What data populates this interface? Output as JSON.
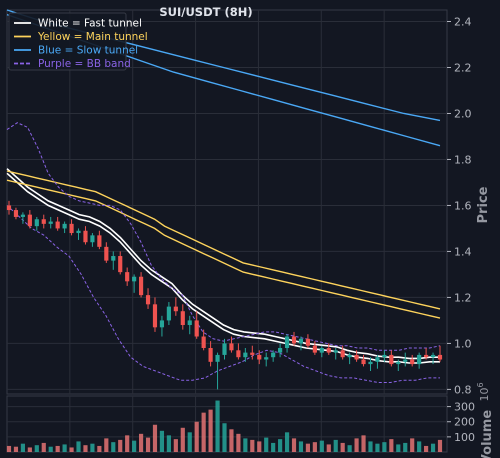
{
  "chart_data": {
    "type": "candlestick",
    "title": "SUI/USDT (8H)",
    "ylabel": "Price",
    "volume_label": "Volume",
    "volume_exponent_label": "1e6",
    "volume_exponent_text": "10",
    "volume_exponent_power": "6",
    "ylim": [
      0.78,
      2.45
    ],
    "yticks": [
      "2.4",
      "2.2",
      "2.0",
      "1.8",
      "1.6",
      "1.4",
      "1.2",
      "1.0",
      "0.8"
    ],
    "volume_ylim": [
      0,
      370
    ],
    "volume_ticks": [
      "300",
      "200",
      "100"
    ],
    "grid": true,
    "legend_position": "top-left",
    "colors": {
      "up": "#26a69a",
      "down": "#ef5350",
      "fast": "#ffffff",
      "main": "#fdd35c",
      "slow": "#4aa8f5",
      "bb": "#8a63e6",
      "background": "#131722",
      "grid": "#2a2e39"
    },
    "legend": [
      {
        "label": "White = Fast tunnel",
        "color": "#ffffff",
        "dash": false
      },
      {
        "label": "Yellow = Main tunnel",
        "color": "#fdd35c",
        "dash": false
      },
      {
        "label": "Blue = Slow tunnel",
        "color": "#4aa8f5",
        "dash": false
      },
      {
        "label": "Purple = BB band",
        "color": "#8a63e6",
        "dash": true
      }
    ],
    "series": [
      {
        "name": "Fast tunnel upper",
        "values": [
          1.76,
          1.72,
          1.68,
          1.65,
          1.62,
          1.6,
          1.58,
          1.56,
          1.55,
          1.53,
          1.5,
          1.46,
          1.41,
          1.36,
          1.32,
          1.29,
          1.26,
          1.21,
          1.17,
          1.14,
          1.11,
          1.08,
          1.06,
          1.05,
          1.045,
          1.04,
          1.03,
          1.02,
          1.01,
          1.0,
          0.995,
          0.99,
          0.985,
          0.97,
          0.96,
          0.955,
          0.945,
          0.94,
          0.94,
          0.935,
          0.935,
          0.94,
          0.94
        ]
      },
      {
        "name": "Fast tunnel lower",
        "values": [
          1.74,
          1.7,
          1.66,
          1.63,
          1.6,
          1.58,
          1.56,
          1.54,
          1.53,
          1.51,
          1.48,
          1.44,
          1.39,
          1.34,
          1.3,
          1.27,
          1.24,
          1.19,
          1.15,
          1.12,
          1.09,
          1.06,
          1.04,
          1.03,
          1.025,
          1.02,
          1.01,
          1.0,
          0.99,
          0.98,
          0.975,
          0.97,
          0.965,
          0.95,
          0.94,
          0.935,
          0.925,
          0.92,
          0.92,
          0.915,
          0.915,
          0.92,
          0.92
        ]
      },
      {
        "name": "Main tunnel upper",
        "values": [
          1.75,
          1.74,
          1.73,
          1.72,
          1.71,
          1.7,
          1.69,
          1.68,
          1.67,
          1.66,
          1.64,
          1.62,
          1.6,
          1.58,
          1.56,
          1.54,
          1.51,
          1.49,
          1.47,
          1.45,
          1.43,
          1.41,
          1.39,
          1.37,
          1.35,
          1.34,
          1.33,
          1.32,
          1.31,
          1.3,
          1.29,
          1.28,
          1.27,
          1.26,
          1.25,
          1.24,
          1.23,
          1.22,
          1.21,
          1.2,
          1.19,
          1.18,
          1.17,
          1.16,
          1.15
        ]
      },
      {
        "name": "Main tunnel lower",
        "values": [
          1.71,
          1.7,
          1.69,
          1.68,
          1.67,
          1.66,
          1.65,
          1.64,
          1.63,
          1.62,
          1.6,
          1.58,
          1.56,
          1.54,
          1.52,
          1.5,
          1.47,
          1.45,
          1.43,
          1.41,
          1.39,
          1.37,
          1.35,
          1.33,
          1.31,
          1.3,
          1.29,
          1.28,
          1.27,
          1.26,
          1.25,
          1.24,
          1.23,
          1.22,
          1.21,
          1.2,
          1.19,
          1.18,
          1.17,
          1.16,
          1.15,
          1.14,
          1.13,
          1.12,
          1.11
        ]
      },
      {
        "name": "Slow tunnel upper",
        "values": [
          2.45,
          2.4,
          2.36,
          2.32,
          2.28,
          2.24,
          2.2,
          2.16,
          2.12,
          2.08,
          2.04,
          2.0,
          1.97
        ]
      },
      {
        "name": "Slow tunnel lower",
        "values": [
          2.43,
          2.38,
          2.33,
          2.28,
          2.23,
          2.18,
          2.14,
          2.1,
          2.06,
          2.02,
          1.98,
          1.94,
          1.9,
          1.86
        ]
      },
      {
        "name": "BB upper",
        "values": [
          1.93,
          1.96,
          1.94,
          1.85,
          1.74,
          1.68,
          1.64,
          1.62,
          1.61,
          1.6,
          1.6,
          1.58,
          1.52,
          1.44,
          1.34,
          1.28,
          1.24,
          1.21,
          1.12,
          1.05,
          1.02,
          1.01,
          1.02,
          1.03,
          1.04,
          1.05,
          1.05,
          1.04,
          1.03,
          1.02,
          1.01,
          1.0,
          0.99,
          0.99,
          0.98,
          0.98,
          0.97,
          0.97,
          0.97,
          0.98,
          0.98,
          0.98,
          0.99
        ]
      },
      {
        "name": "BB lower",
        "values": [
          1.6,
          1.55,
          1.5,
          1.47,
          1.42,
          1.38,
          1.3,
          1.2,
          1.12,
          1.02,
          0.94,
          0.9,
          0.88,
          0.86,
          0.84,
          0.84,
          0.85,
          0.88,
          0.9,
          0.92,
          0.95,
          0.97,
          0.96,
          0.93,
          0.9,
          0.88,
          0.86,
          0.85,
          0.85,
          0.84,
          0.83,
          0.83,
          0.84,
          0.84,
          0.85,
          0.85
        ]
      }
    ],
    "candles": [
      [
        1.6,
        1.62,
        1.56,
        1.58
      ],
      [
        1.58,
        1.59,
        1.54,
        1.55
      ],
      [
        1.55,
        1.57,
        1.52,
        1.56
      ],
      [
        1.56,
        1.58,
        1.5,
        1.51
      ],
      [
        1.51,
        1.55,
        1.49,
        1.54
      ],
      [
        1.54,
        1.56,
        1.5,
        1.52
      ],
      [
        1.52,
        1.55,
        1.5,
        1.53
      ],
      [
        1.53,
        1.55,
        1.49,
        1.5
      ],
      [
        1.5,
        1.53,
        1.48,
        1.52
      ],
      [
        1.52,
        1.54,
        1.47,
        1.48
      ],
      [
        1.48,
        1.5,
        1.45,
        1.49
      ],
      [
        1.49,
        1.51,
        1.43,
        1.44
      ],
      [
        1.44,
        1.48,
        1.42,
        1.47
      ],
      [
        1.47,
        1.49,
        1.41,
        1.42
      ],
      [
        1.42,
        1.44,
        1.35,
        1.36
      ],
      [
        1.36,
        1.4,
        1.32,
        1.38
      ],
      [
        1.38,
        1.4,
        1.3,
        1.31
      ],
      [
        1.31,
        1.33,
        1.25,
        1.27
      ],
      [
        1.27,
        1.3,
        1.22,
        1.29
      ],
      [
        1.29,
        1.31,
        1.2,
        1.21
      ],
      [
        1.21,
        1.24,
        1.15,
        1.17
      ],
      [
        1.17,
        1.2,
        1.05,
        1.07
      ],
      [
        1.07,
        1.12,
        1.03,
        1.1
      ],
      [
        1.1,
        1.18,
        1.08,
        1.16
      ],
      [
        1.16,
        1.2,
        1.12,
        1.14
      ],
      [
        1.14,
        1.17,
        1.06,
        1.08
      ],
      [
        1.08,
        1.12,
        1.04,
        1.1
      ],
      [
        1.1,
        1.14,
        1.02,
        1.03
      ],
      [
        1.03,
        1.06,
        0.97,
        0.98
      ],
      [
        0.98,
        1.01,
        0.9,
        0.92
      ],
      [
        0.92,
        0.96,
        0.8,
        0.95
      ],
      [
        0.95,
        1.02,
        0.93,
        1.0
      ],
      [
        1.0,
        1.03,
        0.96,
        0.97
      ],
      [
        0.97,
        1.0,
        0.93,
        0.94
      ],
      [
        0.94,
        0.98,
        0.92,
        0.96
      ],
      [
        0.96,
        0.99,
        0.93,
        0.95
      ],
      [
        0.95,
        0.97,
        0.91,
        0.93
      ],
      [
        0.93,
        0.96,
        0.9,
        0.94
      ],
      [
        0.94,
        0.97,
        0.92,
        0.96
      ],
      [
        0.96,
        1.0,
        0.94,
        0.98
      ],
      [
        0.98,
        1.04,
        0.96,
        1.03
      ],
      [
        1.03,
        1.05,
        0.99,
        1.0
      ],
      [
        1.0,
        1.03,
        0.97,
        1.02
      ],
      [
        1.02,
        1.04,
        0.98,
        0.99
      ],
      [
        0.99,
        1.01,
        0.95,
        0.96
      ],
      [
        0.96,
        0.99,
        0.94,
        0.98
      ],
      [
        0.98,
        1.0,
        0.95,
        0.96
      ],
      [
        0.96,
        0.98,
        0.93,
        0.97
      ],
      [
        0.97,
        0.99,
        0.93,
        0.94
      ],
      [
        0.94,
        0.96,
        0.91,
        0.95
      ],
      [
        0.95,
        0.97,
        0.92,
        0.93
      ],
      [
        0.93,
        0.95,
        0.9,
        0.91
      ],
      [
        0.91,
        0.94,
        0.88,
        0.92
      ],
      [
        0.92,
        0.95,
        0.89,
        0.94
      ],
      [
        0.94,
        0.97,
        0.92,
        0.95
      ],
      [
        0.95,
        0.97,
        0.9,
        0.91
      ],
      [
        0.91,
        0.93,
        0.88,
        0.92
      ],
      [
        0.92,
        0.96,
        0.9,
        0.93
      ],
      [
        0.93,
        0.95,
        0.9,
        0.91
      ],
      [
        0.91,
        0.96,
        0.89,
        0.95
      ],
      [
        0.95,
        0.98,
        0.93,
        0.94
      ],
      [
        0.94,
        0.96,
        0.91,
        0.95
      ],
      [
        0.95,
        0.99,
        0.92,
        0.93
      ]
    ],
    "volume": [
      40,
      35,
      55,
      30,
      45,
      60,
      35,
      40,
      50,
      30,
      70,
      45,
      55,
      40,
      90,
      65,
      80,
      110,
      75,
      120,
      95,
      180,
      140,
      110,
      85,
      160,
      130,
      200,
      260,
      280,
      340,
      190,
      150,
      120,
      90,
      80,
      70,
      95,
      60,
      85,
      130,
      90,
      70,
      55,
      65,
      75,
      50,
      80,
      60,
      45,
      90,
      110,
      70,
      55,
      65,
      85,
      50,
      60,
      90,
      70,
      40,
      55,
      80
    ]
  }
}
